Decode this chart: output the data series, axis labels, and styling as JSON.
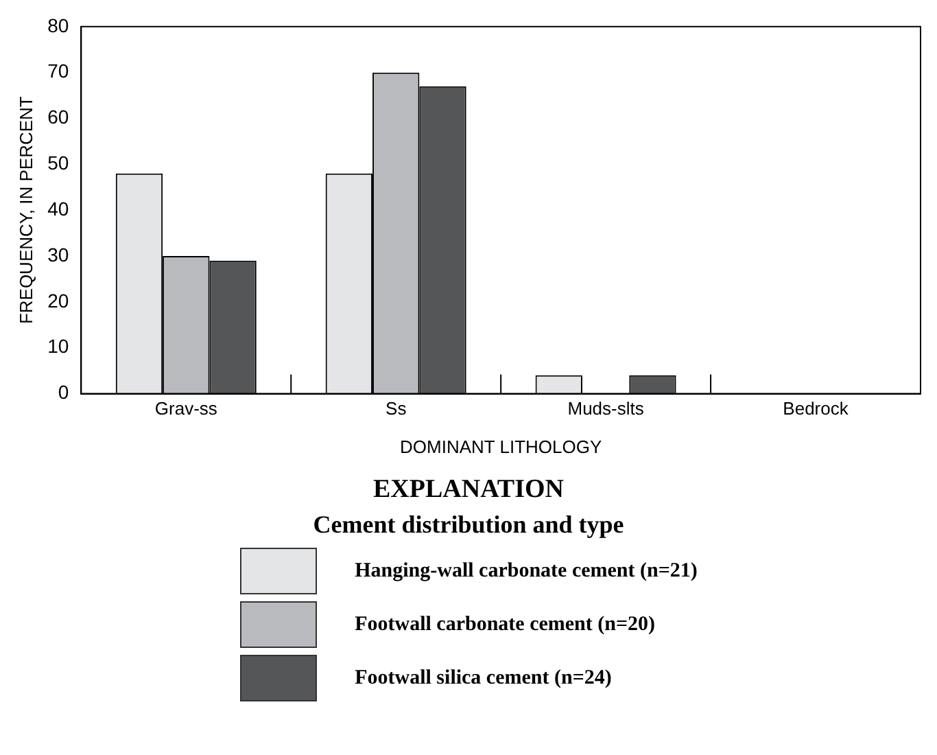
{
  "chart_data": {
    "type": "bar",
    "xlabel": "DOMINANT LITHOLOGY",
    "ylabel": "FREQUENCY, IN PERCENT",
    "legend_title": "Cement distribution and type",
    "annotations": [
      "EXPLANATION"
    ],
    "categories": [
      "Grav-ss",
      "Ss",
      "Muds-slts",
      "Bedrock"
    ],
    "series": [
      {
        "name": "Hanging-wall carbonate cement (n=21)",
        "color": "#e4e5e7",
        "values": [
          48,
          48,
          4,
          0
        ]
      },
      {
        "name": "Footwall carbonate cement (n=20)",
        "color": "#b9babe",
        "values": [
          30,
          70,
          0,
          0
        ]
      },
      {
        "name": "Footwall silica cement (n=24)",
        "color": "#555658",
        "values": [
          29,
          67,
          4,
          0
        ]
      }
    ],
    "ylim": [
      0,
      80
    ],
    "yticks": [
      0,
      10,
      20,
      30,
      40,
      50,
      60,
      70,
      80
    ],
    "grid": false,
    "legend": "bottom"
  }
}
